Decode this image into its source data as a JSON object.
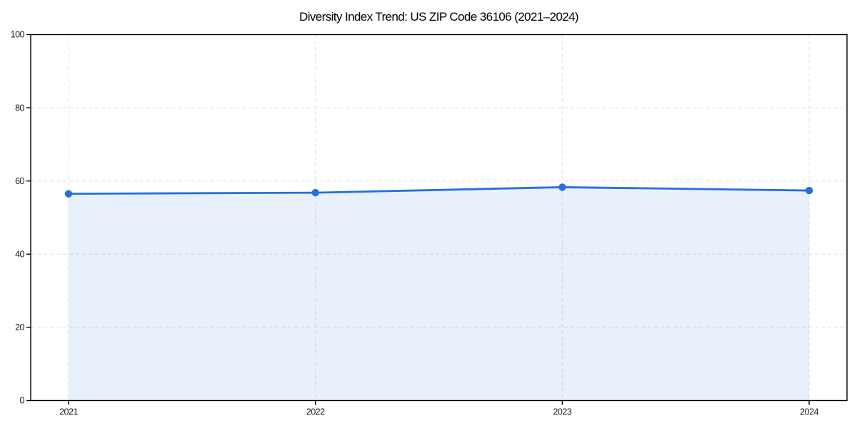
{
  "page": {
    "background": "#ffffff"
  },
  "chart_data": {
    "type": "area",
    "title": "Diversity Index Trend: US ZIP Code 36106 (2021–2024)",
    "xlabel": "",
    "ylabel": "",
    "x": [
      2021,
      2022,
      2023,
      2024
    ],
    "xtick_labels": [
      "2021",
      "2022",
      "2023",
      "2024"
    ],
    "series": [
      {
        "name": "Diversity Index",
        "values": [
          56.5,
          56.8,
          58.3,
          57.4
        ]
      }
    ],
    "ylim": [
      0,
      100
    ],
    "yticks": [
      0,
      20,
      40,
      60,
      80,
      100
    ],
    "grid": true,
    "legend": "none",
    "style": {
      "line_color": "#2270e1",
      "marker": "circle",
      "marker_color": "#2270e1",
      "fill_color": "#2270e1",
      "fill_opacity": 0.1,
      "grid_color": "#e0e0e0",
      "grid_dash": "5 4",
      "spine_color": "#000000",
      "tick_label_color": "#1a1a1a",
      "title_color": "#000000"
    }
  }
}
